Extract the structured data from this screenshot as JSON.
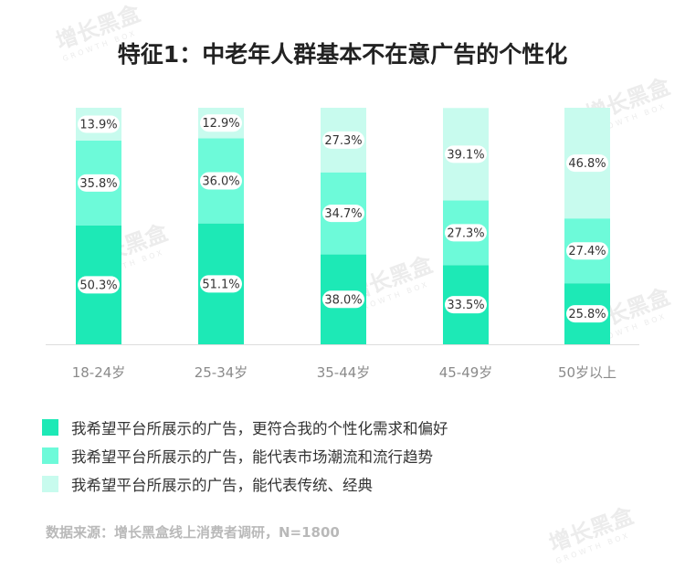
{
  "title": "特征1：中老年人群基本不在意广告的个性化",
  "colors": {
    "bottom": "#1de9b6",
    "middle": "#6dfad9",
    "top": "#c8fbee",
    "label_bg": "#ffffff",
    "axis_text": "#8a8a8a"
  },
  "chart_data": {
    "type": "bar",
    "stacked": true,
    "percent": true,
    "categories": [
      "18-24岁",
      "25-34岁",
      "35-44岁",
      "45-49岁",
      "50岁以上"
    ],
    "series": [
      {
        "name": "我希望平台所展示的广告，更符合我的个性化需求和偏好",
        "values": [
          50.3,
          51.1,
          38.0,
          33.5,
          25.8
        ]
      },
      {
        "name": "我希望平台所展示的广告，能代表市场潮流和流行趋势",
        "values": [
          35.8,
          36.0,
          34.7,
          27.3,
          27.4
        ]
      },
      {
        "name": "我希望平台所展示的广告，能代表传统、经典",
        "values": [
          13.9,
          12.9,
          27.3,
          39.1,
          46.8
        ]
      }
    ],
    "data_labels": [
      [
        "50.3%",
        "51.1%",
        "38.0%",
        "33.5%",
        "25.8%"
      ],
      [
        "35.8%",
        "36.0%",
        "34.7%",
        "27.3%",
        "27.4%"
      ],
      [
        "13.9%",
        "12.9%",
        "27.3%",
        "39.1%",
        "46.8%"
      ]
    ],
    "ylim": [
      0,
      100
    ]
  },
  "legend": [
    "我希望平台所展示的广告，更符合我的个性化需求和偏好",
    "我希望平台所展示的广告，能代表市场潮流和流行趋势",
    "我希望平台所展示的广告，能代表传统、经典"
  ],
  "source": "数据来源：增长黑盒线上消费者调研，N=1800",
  "watermark": {
    "text": "增长黑盒",
    "sub": "GROWTH BOX"
  }
}
